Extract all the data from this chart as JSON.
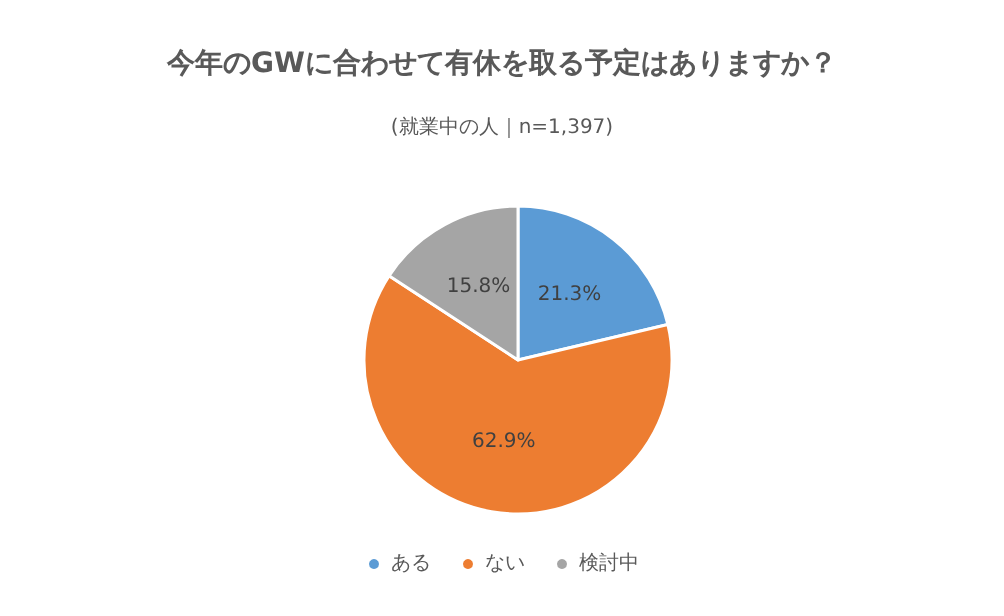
{
  "chart_data": {
    "type": "pie",
    "title": "今年のGWに合わせて有休を取る予定はありますか？",
    "subtitle": "(就業中の人｜n=1,397)",
    "categories": [
      "ある",
      "ない",
      "検討中"
    ],
    "values": [
      21.3,
      62.9,
      15.8
    ],
    "colors": [
      "#5b9bd5",
      "#ed7d31",
      "#a5a5a5"
    ],
    "value_labels": [
      "21.3%",
      "62.9%",
      "15.8%"
    ],
    "legend": "bottom"
  }
}
